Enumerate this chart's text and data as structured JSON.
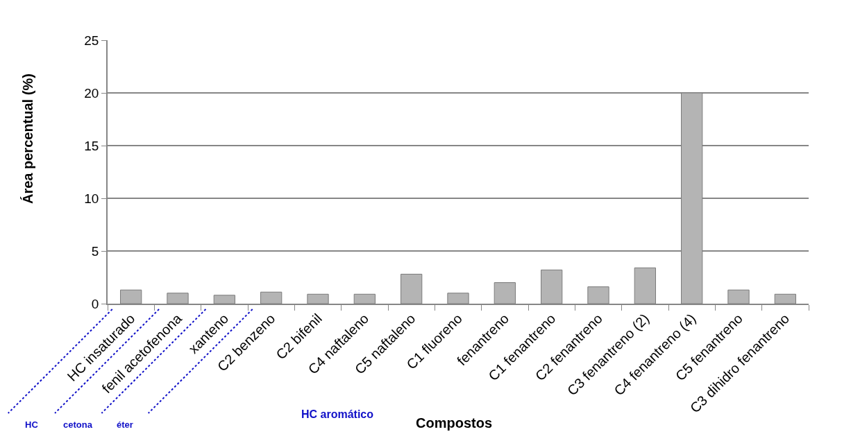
{
  "chart_data": {
    "type": "bar",
    "xlabel": "Compostos",
    "ylabel": "Área percentual (%)",
    "categories": [
      "HC insaturado",
      "fenil acetofenona",
      "xanteno",
      "C2 benzeno",
      "C2 bifenil",
      "C4 naftaleno",
      "C5 naftaleno",
      "C1 fluoreno",
      "fenantreno",
      "C1 fenantreno",
      "C2 fenantreno",
      "C3 fenantreno (2)",
      "C4 fenantreno (4)",
      "C5 fenantreno",
      "C3 dihidro fenantreno"
    ],
    "values": [
      1.3,
      1.0,
      0.8,
      1.1,
      0.9,
      0.9,
      2.8,
      1.0,
      2.0,
      3.2,
      1.6,
      3.4,
      20.0,
      1.3,
      0.9
    ],
    "color": "#b4b4b4",
    "ylim": [
      0,
      25
    ],
    "yticks": [
      0,
      5,
      10,
      15,
      20,
      25
    ],
    "grid": "y",
    "annotations": [
      "HC",
      "cetona",
      "éter",
      "HC aromático"
    ]
  }
}
